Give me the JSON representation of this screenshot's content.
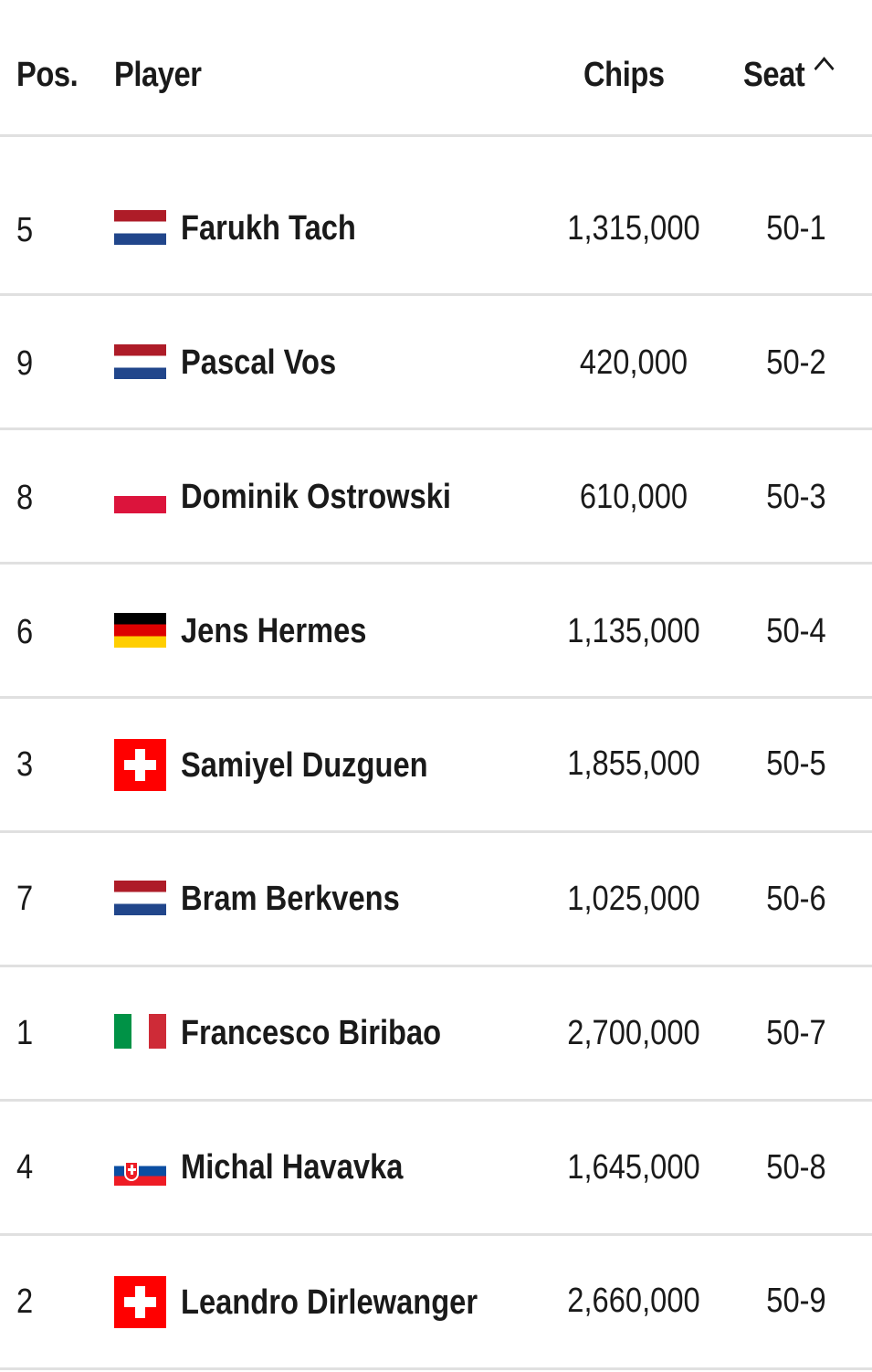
{
  "header": {
    "pos": "Pos.",
    "player": "Player",
    "chips": "Chips",
    "seat": "Seat",
    "sort_icon": "chevron-up-icon"
  },
  "rows": [
    {
      "pos": "5",
      "flag": "netherlands",
      "name": "Farukh Tach",
      "chips": "1,315,000",
      "seat": "50-1"
    },
    {
      "pos": "9",
      "flag": "netherlands",
      "name": "Pascal Vos",
      "chips": "420,000",
      "seat": "50-2"
    },
    {
      "pos": "8",
      "flag": "poland",
      "name": "Dominik Ostrowski",
      "chips": "610,000",
      "seat": "50-3"
    },
    {
      "pos": "6",
      "flag": "germany",
      "name": "Jens Hermes",
      "chips": "1,135,000",
      "seat": "50-4"
    },
    {
      "pos": "3",
      "flag": "switzerland",
      "name": "Samiyel Duzguen",
      "chips": "1,855,000",
      "seat": "50-5"
    },
    {
      "pos": "7",
      "flag": "netherlands",
      "name": "Bram Berkvens",
      "chips": "1,025,000",
      "seat": "50-6"
    },
    {
      "pos": "1",
      "flag": "italy",
      "name": "Francesco Biribao",
      "chips": "2,700,000",
      "seat": "50-7"
    },
    {
      "pos": "4",
      "flag": "slovakia",
      "name": "Michal Havavka",
      "chips": "1,645,000",
      "seat": "50-8"
    },
    {
      "pos": "2",
      "flag": "switzerland",
      "name": "Leandro Dirlewanger",
      "chips": "2,660,000",
      "seat": "50-9"
    }
  ]
}
